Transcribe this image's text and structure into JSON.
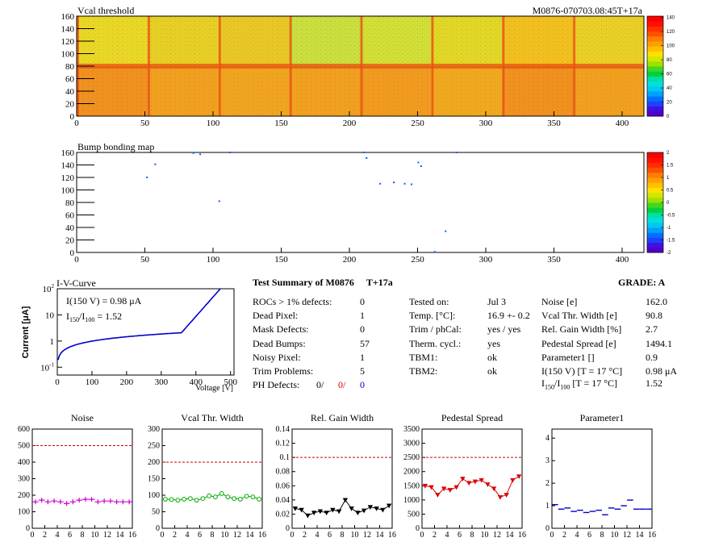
{
  "header": {
    "id_label": "M0876-070703.08:45T+17a"
  },
  "vcal_map": {
    "title": "Vcal threshold",
    "x_ticks": [
      0,
      50,
      100,
      150,
      200,
      250,
      300,
      350,
      400
    ],
    "y_ticks": [
      0,
      20,
      40,
      60,
      80,
      100,
      120,
      140,
      160
    ],
    "xlim": [
      0,
      416
    ],
    "ylim": [
      0,
      160
    ],
    "palette_labels": [
      "0",
      "20",
      "40",
      "60",
      "80",
      "100",
      "120",
      "140"
    ]
  },
  "bump_map": {
    "title": "Bump bonding map",
    "x_ticks": [
      0,
      50,
      100,
      150,
      200,
      250,
      300,
      350,
      400
    ],
    "y_ticks": [
      0,
      20,
      40,
      60,
      80,
      100,
      120,
      140,
      160
    ],
    "xlim": [
      0,
      416
    ],
    "ylim": [
      0,
      160
    ],
    "palette_labels": [
      "-2",
      "-1.5",
      "-1",
      "-0.5",
      "0",
      "0.5",
      "1",
      "1.5",
      "2"
    ],
    "points": [
      [
        51,
        120
      ],
      [
        57,
        141
      ],
      [
        85,
        159
      ],
      [
        90,
        157
      ],
      [
        104,
        82
      ],
      [
        112,
        160
      ],
      [
        210,
        160
      ],
      [
        212,
        151
      ],
      [
        232,
        112
      ],
      [
        245,
        109
      ],
      [
        250,
        144
      ],
      [
        252,
        138
      ],
      [
        262,
        1
      ],
      [
        270,
        34
      ],
      [
        278,
        160
      ],
      [
        222,
        110
      ],
      [
        240,
        110
      ]
    ]
  },
  "iv": {
    "title": "I-V-Curve",
    "ylabel": "Current [μA]",
    "xlabel": "Voltage [V]",
    "x_ticks": [
      0,
      100,
      200,
      300,
      400,
      500
    ],
    "i150_prefix": "I(150 V) = ",
    "i150_value": "0.98",
    "i150_unit": "μA",
    "ratio_symbol": "I",
    "ratio_sub1": "150",
    "ratio_sep": "/I",
    "ratio_sub2": "100",
    "ratio_value": " =  1.52"
  },
  "summary": {
    "title": "Test Summary of M0876",
    "tag": "T+17a",
    "grade_label": "GRADE:  A",
    "left": [
      {
        "label": "ROCs > 1% defects:",
        "value": "0"
      },
      {
        "label": "Dead Pixel:",
        "value": "1"
      },
      {
        "label": "Mask Defects:",
        "value": "0"
      },
      {
        "label": "Dead Bumps:",
        "value": "57"
      },
      {
        "label": "Noisy Pixel:",
        "value": "1"
      },
      {
        "label": "Trim Problems:",
        "value": "5"
      }
    ],
    "ph_label": "PH Defects:",
    "ph_values": [
      "0/",
      "0/",
      "0"
    ],
    "ph_colors": [
      "#000000",
      "#dd0000",
      "#0000cc"
    ],
    "mid": [
      {
        "label": "Tested on:",
        "value": "Jul 3"
      },
      {
        "label": "Temp. [°C]:",
        "value": "16.9 +- 0.2"
      },
      {
        "label": "Trim / phCal:",
        "value": "yes / yes"
      },
      {
        "label": "Therm. cycl.:",
        "value": "yes"
      },
      {
        "label": "TBM1:",
        "value": "ok"
      },
      {
        "label": "TBM2:",
        "value": "ok"
      }
    ],
    "right": [
      {
        "label": "Noise [e]",
        "value": "162.0"
      },
      {
        "label": "Vcal Thr. Width [e]",
        "value": "90.8"
      },
      {
        "label": "Rel. Gain Width [%]",
        "value": "2.7"
      },
      {
        "label": "Pedestal Spread [e]",
        "value": "1494.1"
      },
      {
        "label": "Parameter1 []",
        "value": "0.9"
      },
      {
        "label": "I(150 V) [T = 17 °C]",
        "value": "0.98 μA"
      }
    ],
    "last_label_symbol": "I",
    "last_label_sub1": "150",
    "last_label_sep": "/I",
    "last_label_sub2": "100",
    "last_label_rest": "  [T = 17 °C]",
    "last_value": "1.52"
  },
  "chart_data": [
    {
      "type": "scatter",
      "title": "Noise",
      "x": [
        0,
        1,
        2,
        3,
        4,
        5,
        6,
        7,
        8,
        9,
        10,
        11,
        12,
        13,
        14,
        15
      ],
      "values": [
        160,
        170,
        160,
        165,
        160,
        150,
        160,
        170,
        175,
        175,
        160,
        165,
        165,
        160,
        160,
        160
      ],
      "ylim": [
        0,
        600
      ],
      "y_ticks": [
        0,
        100,
        200,
        300,
        400,
        500,
        600
      ],
      "threshold": 500,
      "color": "#cc00cc",
      "marker": "plus"
    },
    {
      "type": "line",
      "title": "Vcal Thr. Width",
      "x": [
        0,
        1,
        2,
        3,
        4,
        5,
        6,
        7,
        8,
        9,
        10,
        11,
        12,
        13,
        14,
        15
      ],
      "values": [
        88,
        87,
        85,
        88,
        90,
        85,
        90,
        98,
        95,
        105,
        95,
        90,
        88,
        97,
        95,
        88
      ],
      "ylim": [
        0,
        300
      ],
      "y_ticks": [
        0,
        50,
        100,
        150,
        200,
        250,
        300
      ],
      "threshold": 200,
      "color": "#00aa00",
      "marker": "circle"
    },
    {
      "type": "line",
      "title": "Rel. Gain Width",
      "x": [
        0,
        1,
        2,
        3,
        4,
        5,
        6,
        7,
        8,
        9,
        10,
        11,
        12,
        13,
        14,
        15
      ],
      "values": [
        0.028,
        0.026,
        0.018,
        0.022,
        0.024,
        0.022,
        0.026,
        0.024,
        0.04,
        0.028,
        0.022,
        0.025,
        0.03,
        0.028,
        0.026,
        0.032
      ],
      "ylim": [
        0,
        0.14
      ],
      "y_ticks": [
        0,
        0.02,
        0.04,
        0.06,
        0.08,
        0.1,
        0.12,
        0.14
      ],
      "threshold": 0.1,
      "color": "#000000",
      "marker": "triangle"
    },
    {
      "type": "line",
      "title": "Pedestal Spread",
      "x": [
        0,
        1,
        2,
        3,
        4,
        5,
        6,
        7,
        8,
        9,
        10,
        11,
        12,
        13,
        14,
        15
      ],
      "values": [
        1500,
        1450,
        1180,
        1400,
        1350,
        1450,
        1750,
        1600,
        1650,
        1700,
        1550,
        1400,
        1100,
        1180,
        1700,
        1830
      ],
      "ylim": [
        0,
        3500
      ],
      "y_ticks": [
        0,
        500,
        1000,
        1500,
        2000,
        2500,
        3000,
        3500
      ],
      "threshold": 2500,
      "color": "#dd0000",
      "marker": "triangle"
    },
    {
      "type": "scatter",
      "title": "Parameter1",
      "x": [
        0,
        1,
        2,
        3,
        4,
        5,
        6,
        7,
        8,
        9,
        10,
        11,
        12,
        13,
        14,
        15
      ],
      "values": [
        1.05,
        0.85,
        0.9,
        0.75,
        0.8,
        0.7,
        0.75,
        0.8,
        0.6,
        0.9,
        0.85,
        1.0,
        1.25,
        0.85,
        0.85,
        0.85
      ],
      "ylim": [
        0,
        4.4
      ],
      "y_ticks": [
        0,
        1,
        2,
        3,
        4
      ],
      "threshold": null,
      "color": "#0000cc",
      "marker": "hbar"
    }
  ],
  "small_x_ticks": [
    0,
    2,
    4,
    6,
    8,
    10,
    12,
    14,
    16
  ]
}
